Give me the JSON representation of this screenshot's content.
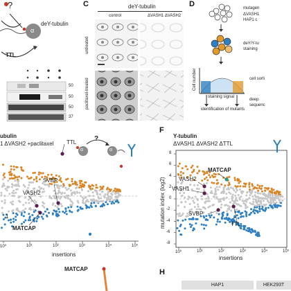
{
  "panels": {
    "C": "C",
    "D": "D",
    "F": "F",
    "H": "H"
  },
  "panelA": {
    "question": "?",
    "tubulin_label": "deY-tubulin",
    "tubulin_letter": "α",
    "enzyme": "TTL",
    "blot_numbers": [
      "50",
      "50",
      "50",
      "37"
    ]
  },
  "panelC": {
    "title": "deY-tubulin",
    "col_control": "control",
    "col_ko": "ΔVASH1 ΔVASH2",
    "row_untreated": "untreated",
    "row_paclitaxel": "paclitaxel-treated"
  },
  "panelD": {
    "mutagen": "mutagen",
    "cells_line1": "ΔVASH1",
    "cells_line2": "HAP1 c",
    "staining_line1": "deY/Y-tu",
    "staining_line2": "staining",
    "sorting": "cell sorti",
    "low": "low",
    "high": "high",
    "yaxis": "Cell number",
    "xaxis": "staining signal",
    "deep": "deep",
    "deep2": "sequenc",
    "identification": "identification of mutants"
  },
  "panelE": {
    "title1": "ubulin",
    "title2": "1 ΔVASH2 +paclitaxel",
    "xlabel": "insertions",
    "question": "?",
    "letter": "α",
    "genes": {
      "ttl": "TTL",
      "svbp": "SVBP",
      "vash2": "VASH2",
      "matcap": "MATCAP",
      "vash1": "1"
    },
    "xticks": [
      "10⁰",
      "10¹",
      "10²",
      "10³",
      "10⁴",
      "10⁵"
    ]
  },
  "panelF": {
    "title1": "Y-tubulin",
    "title2": "ΔVASH1 ΔVASH2 ΔTTL",
    "xlabel": "insertions",
    "ylabel": "mutation index (log2)",
    "yticks": [
      "8",
      "6",
      "4",
      "2",
      "0",
      "-2",
      "-4",
      "-6",
      "-8"
    ],
    "xticks": [
      "10⁰",
      "10¹",
      "10²",
      "10³",
      "10⁴",
      "10⁵"
    ],
    "genes": {
      "matcap": "MATCAP",
      "vash2": "VASH2",
      "vash1": "VASH1",
      "ttl": "TTL",
      "svbp": "SVBP"
    }
  },
  "panelG": {
    "matcap": "MATCAP"
  },
  "panelH": {
    "col1": "HAP1",
    "col2": "HEK293T"
  },
  "colors": {
    "up": "#d9862a",
    "down": "#2f7fc1",
    "dark": "#5a1d4f",
    "teal": "#2a9d8f",
    "red": "#c0392b"
  }
}
